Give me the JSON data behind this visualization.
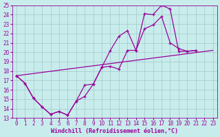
{
  "xlabel": "Windchill (Refroidissement éolien,°C)",
  "background_color": "#c8ecec",
  "grid_color": "#a0c8c8",
  "line_color": "#990099",
  "xlim": [
    -0.5,
    23.5
  ],
  "ylim": [
    13,
    25
  ],
  "xticks": [
    0,
    1,
    2,
    3,
    4,
    5,
    6,
    7,
    8,
    9,
    10,
    11,
    12,
    13,
    14,
    15,
    16,
    17,
    18,
    19,
    20,
    21,
    22,
    23
  ],
  "yticks": [
    13,
    14,
    15,
    16,
    17,
    18,
    19,
    20,
    21,
    22,
    23,
    24,
    25
  ],
  "line1_x": [
    0,
    1,
    2,
    3,
    4,
    5,
    6,
    7,
    8,
    9,
    10,
    11,
    12,
    13,
    14,
    15,
    16,
    17,
    18,
    19,
    20,
    21,
    22,
    23
  ],
  "line1_y": [
    17.5,
    16.7,
    15.1,
    14.2,
    13.4,
    13.7,
    13.3,
    14.8,
    16.5,
    16.6,
    18.4,
    20.2,
    21.7,
    22.3,
    20.2,
    24.1,
    24.0,
    25.0,
    24.6,
    20.1,
    20.1,
    20.2,
    null,
    null
  ],
  "line2_x": [
    0,
    1,
    2,
    3,
    4,
    5,
    6,
    7,
    8,
    9,
    10,
    11,
    12,
    13,
    14,
    15,
    16,
    17,
    18,
    19,
    20,
    21,
    22,
    23
  ],
  "line2_y": [
    17.5,
    16.7,
    15.1,
    14.2,
    13.4,
    13.7,
    13.3,
    14.8,
    15.3,
    16.6,
    18.4,
    18.5,
    18.2,
    20.2,
    20.2,
    22.5,
    22.9,
    23.8,
    21.0,
    20.4,
    20.1,
    20.2,
    null,
    null
  ],
  "line3_x": [
    0,
    23
  ],
  "line3_y": [
    17.5,
    20.2
  ],
  "marker_style": "+",
  "marker_size": 3.5,
  "line_width": 0.9,
  "xlabel_fontsize": 6,
  "tick_fontsize": 5.5
}
